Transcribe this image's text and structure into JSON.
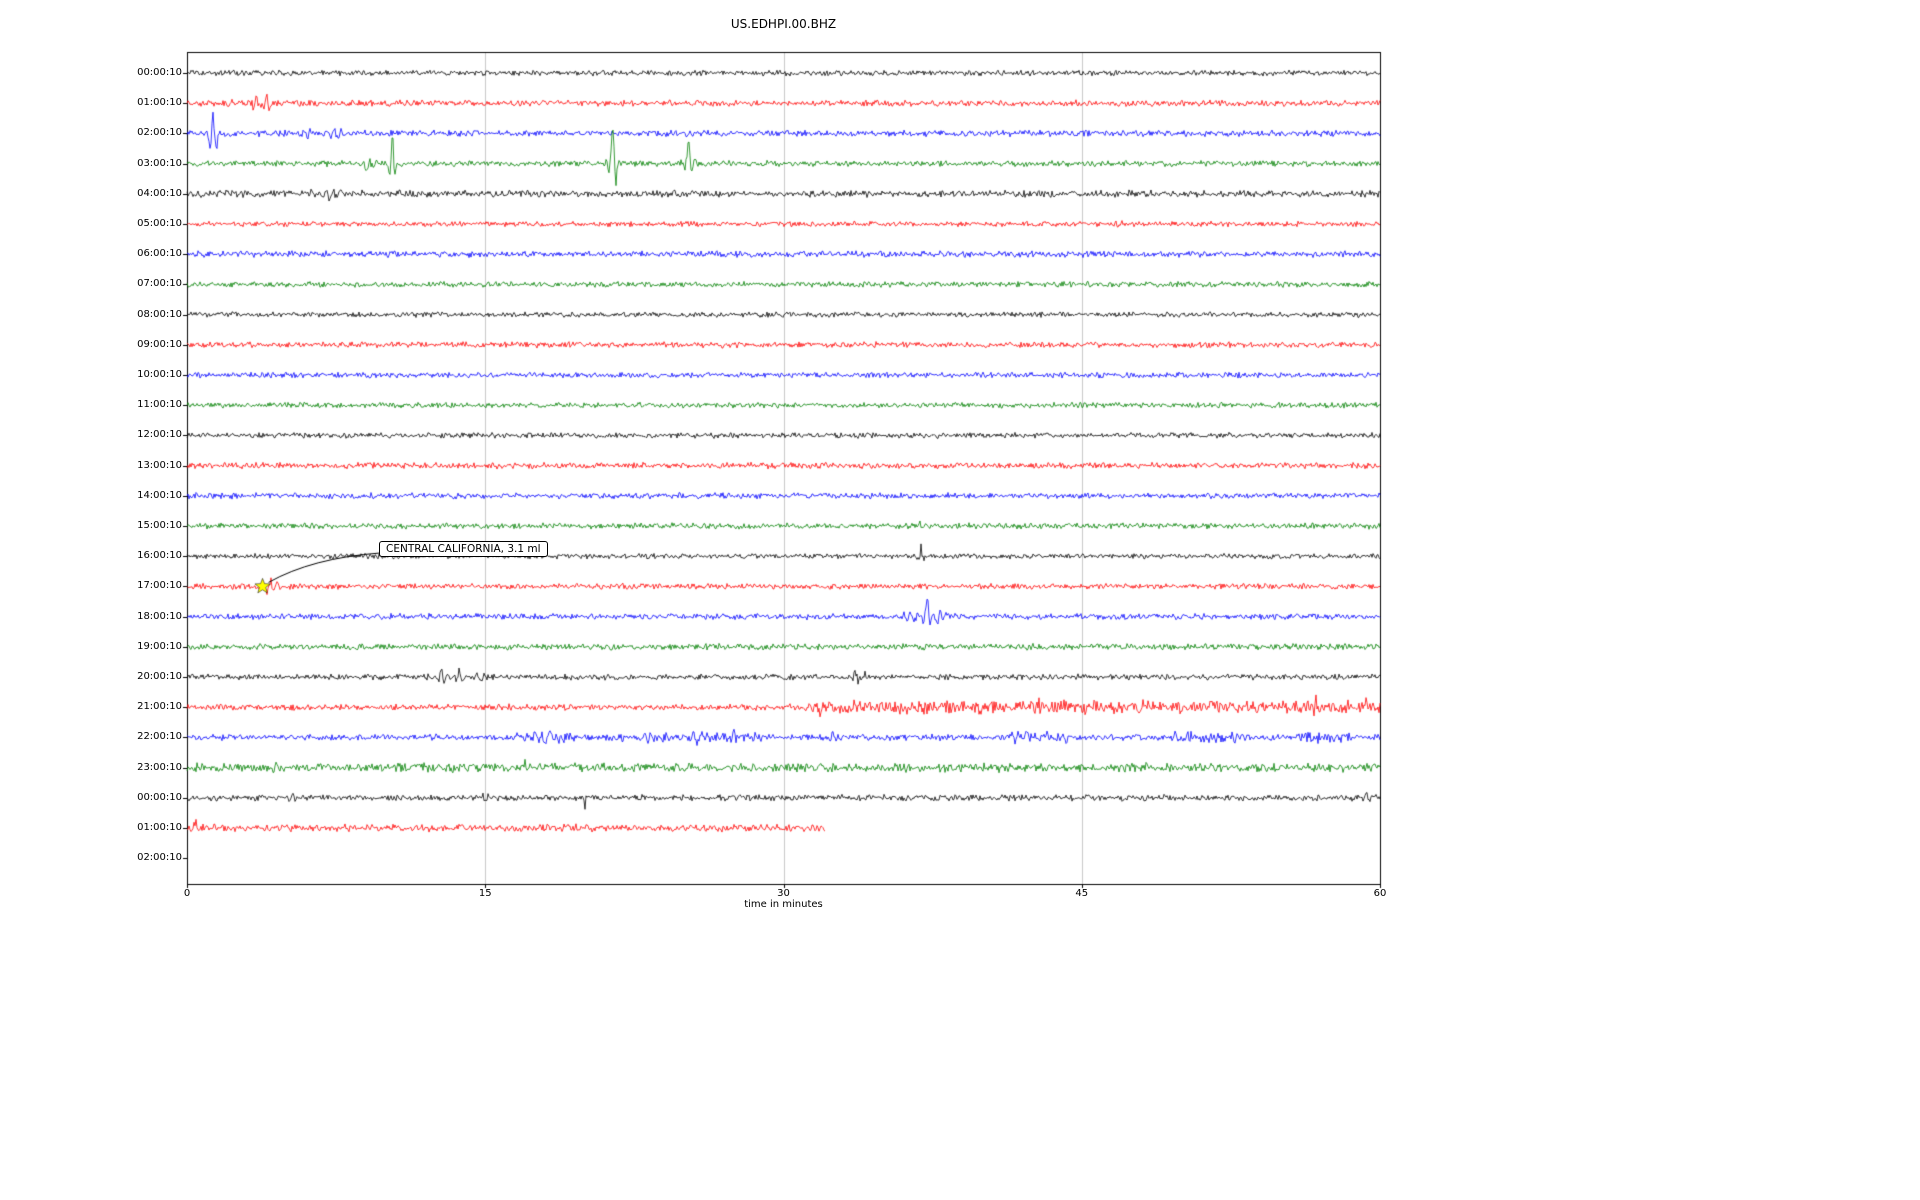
{
  "chart_data": {
    "type": "line",
    "subtype": "seismogram-helicorder",
    "title": "US.EDHPI.00.BHZ",
    "xlabel": "time in minutes",
    "xlim": [
      0,
      60
    ],
    "x_ticks": [
      0,
      15,
      30,
      45,
      60
    ],
    "grid": {
      "vertical_at": [
        15,
        30,
        45
      ],
      "color": "#c9c9c9"
    },
    "colors_cycle": [
      "#000000",
      "#ff0000",
      "#0000ff",
      "#008000"
    ],
    "annotation": {
      "text": "CENTRAL CALIFORNIA, 3.1 ml",
      "row_label": "17:00:10",
      "row_index": 17,
      "t_minutes": 3.8,
      "marker": "yellow-star-icon"
    },
    "rows": [
      {
        "label": "00:00:10",
        "color": "#000000",
        "noise": 1.6,
        "extent": 1,
        "events": [],
        "boosts": []
      },
      {
        "label": "01:00:10",
        "color": "#ff0000",
        "noise": 1.8,
        "extent": 1,
        "events": [
          [
            2.3,
            6,
            0.3
          ],
          [
            3.5,
            11,
            0.5
          ],
          [
            4.0,
            9,
            0.5
          ]
        ],
        "boosts": []
      },
      {
        "label": "02:00:10",
        "color": "#0000ff",
        "noise": 1.8,
        "extent": 1,
        "events": [
          [
            1.3,
            33,
            0.4
          ],
          [
            5.9,
            6,
            1.0
          ],
          [
            7.4,
            7,
            0.9
          ]
        ],
        "boosts": []
      },
      {
        "label": "03:00:10",
        "color": "#008000",
        "noise": 1.7,
        "extent": 1,
        "events": [
          [
            9.2,
            10,
            0.7
          ],
          [
            10.3,
            38,
            0.3
          ],
          [
            21.4,
            34,
            0.45
          ],
          [
            25.2,
            26,
            0.5
          ]
        ],
        "boosts": []
      },
      {
        "label": "04:00:10",
        "color": "#000000",
        "noise": 2.0,
        "extent": 1,
        "events": [
          [
            7.0,
            4,
            1.5
          ]
        ],
        "boosts": []
      },
      {
        "label": "05:00:10",
        "color": "#ff0000",
        "noise": 1.5,
        "extent": 1,
        "events": [
          [
            47.0,
            3,
            0.5
          ]
        ],
        "boosts": []
      },
      {
        "label": "06:00:10",
        "color": "#0000ff",
        "noise": 1.8,
        "extent": 1,
        "events": [],
        "boosts": []
      },
      {
        "label": "07:00:10",
        "color": "#008000",
        "noise": 1.6,
        "extent": 1,
        "events": [],
        "boosts": []
      },
      {
        "label": "08:00:10",
        "color": "#000000",
        "noise": 1.5,
        "extent": 1,
        "events": [],
        "boosts": []
      },
      {
        "label": "09:00:10",
        "color": "#ff0000",
        "noise": 1.7,
        "extent": 1,
        "events": [],
        "boosts": []
      },
      {
        "label": "10:00:10",
        "color": "#0000ff",
        "noise": 1.6,
        "extent": 1,
        "events": [],
        "boosts": []
      },
      {
        "label": "11:00:10",
        "color": "#008000",
        "noise": 1.6,
        "extent": 1,
        "events": [],
        "boosts": []
      },
      {
        "label": "12:00:10",
        "color": "#000000",
        "noise": 1.6,
        "extent": 1,
        "events": [],
        "boosts": []
      },
      {
        "label": "13:00:10",
        "color": "#ff0000",
        "noise": 1.8,
        "extent": 1,
        "events": [],
        "boosts": []
      },
      {
        "label": "14:00:10",
        "color": "#0000ff",
        "noise": 1.7,
        "extent": 1,
        "events": [],
        "boosts": []
      },
      {
        "label": "15:00:10",
        "color": "#008000",
        "noise": 1.7,
        "extent": 1,
        "events": [
          [
            36.8,
            3,
            1.0
          ]
        ],
        "boosts": []
      },
      {
        "label": "16:00:10",
        "color": "#000000",
        "noise": 1.5,
        "extent": 1,
        "events": [
          [
            36.9,
            10,
            0.4
          ]
        ],
        "boosts": []
      },
      {
        "label": "17:00:10",
        "color": "#ff0000",
        "noise": 1.6,
        "extent": 1,
        "events": [
          [
            4.2,
            9,
            0.9
          ]
        ],
        "boosts": []
      },
      {
        "label": "18:00:10",
        "color": "#0000ff",
        "noise": 1.7,
        "extent": 1,
        "events": [
          [
            36.4,
            6,
            0.8
          ],
          [
            37.2,
            25,
            0.3
          ],
          [
            37.9,
            8,
            1.0
          ]
        ],
        "boosts": []
      },
      {
        "label": "19:00:10",
        "color": "#008000",
        "noise": 1.8,
        "extent": 1,
        "events": [],
        "boosts": []
      },
      {
        "label": "20:00:10",
        "color": "#000000",
        "noise": 1.7,
        "extent": 1,
        "events": [
          [
            12.8,
            9,
            0.5
          ],
          [
            13.7,
            7,
            0.5
          ],
          [
            14.6,
            8,
            0.5
          ],
          [
            33.6,
            12,
            0.4
          ],
          [
            34.1,
            9,
            0.3
          ]
        ],
        "boosts": []
      },
      {
        "label": "21:00:10",
        "color": "#ff0000",
        "noise": 1.8,
        "extent": 1,
        "events": [
          [
            32.0,
            7,
            1.2
          ],
          [
            42.8,
            10,
            0.4
          ],
          [
            44.5,
            6,
            0.6
          ],
          [
            48.0,
            7,
            0.5
          ],
          [
            51.5,
            6,
            0.5
          ],
          [
            56.8,
            9,
            0.5
          ],
          [
            59.3,
            5,
            0.4
          ]
        ],
        "boosts": [
          [
            31.5,
            60,
            2.2
          ]
        ]
      },
      {
        "label": "22:00:10",
        "color": "#0000ff",
        "noise": 1.8,
        "extent": 1,
        "events": [
          [
            23.0,
            6,
            0.8
          ],
          [
            25.5,
            7,
            0.6
          ],
          [
            27.5,
            10,
            0.3
          ],
          [
            32.5,
            10,
            0.3
          ]
        ],
        "boosts": [
          [
            16.5,
            19.5,
            2.0
          ],
          [
            21,
            29,
            1.5
          ],
          [
            40.5,
            44.5,
            2.0
          ],
          [
            49.5,
            53.5,
            2.0
          ],
          [
            56,
            58.5,
            1.8
          ]
        ]
      },
      {
        "label": "23:00:10",
        "color": "#008000",
        "noise": 2.2,
        "extent": 1,
        "events": [
          [
            4.5,
            7,
            0.4
          ],
          [
            8.0,
            4,
            0.6
          ],
          [
            17.0,
            5,
            0.3
          ],
          [
            28.5,
            6,
            0.4
          ]
        ],
        "boosts": [
          [
            0,
            60,
            1.2
          ]
        ]
      },
      {
        "label": "00:00:10",
        "color": "#000000",
        "noise": 1.8,
        "extent": 1,
        "events": [
          [
            5.3,
            4,
            0.4
          ],
          [
            15.0,
            -13,
            0.15
          ],
          [
            20.0,
            -15,
            0.15
          ],
          [
            59.3,
            4,
            0.5
          ]
        ],
        "boosts": []
      },
      {
        "label": "01:00:10",
        "color": "#ff0000",
        "noise": 2.2,
        "extent": 0.535,
        "events": [
          [
            0.4,
            6,
            0.5
          ]
        ],
        "boosts": []
      },
      {
        "label": "02:00:10",
        "color": "#0000ff",
        "noise": 0,
        "extent": 0,
        "events": [],
        "boosts": []
      }
    ]
  }
}
